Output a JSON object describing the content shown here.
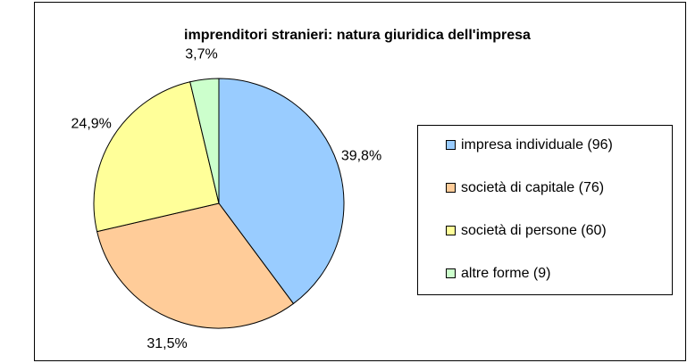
{
  "chart_data": {
    "type": "pie",
    "title": "imprenditori stranieri: natura giuridica dell'impresa",
    "categories": [
      "impresa individuale (96)",
      "società di capitale (76)",
      "società di persone (60)",
      "altre forme (9)"
    ],
    "values": [
      39.8,
      31.5,
      24.9,
      3.7
    ],
    "value_labels": [
      "39,8%",
      "31,5%",
      "24,9%",
      "3,7%"
    ],
    "colors": [
      "#99ccff",
      "#ffcc99",
      "#ffff99",
      "#ccffcc"
    ],
    "legend": "right"
  }
}
